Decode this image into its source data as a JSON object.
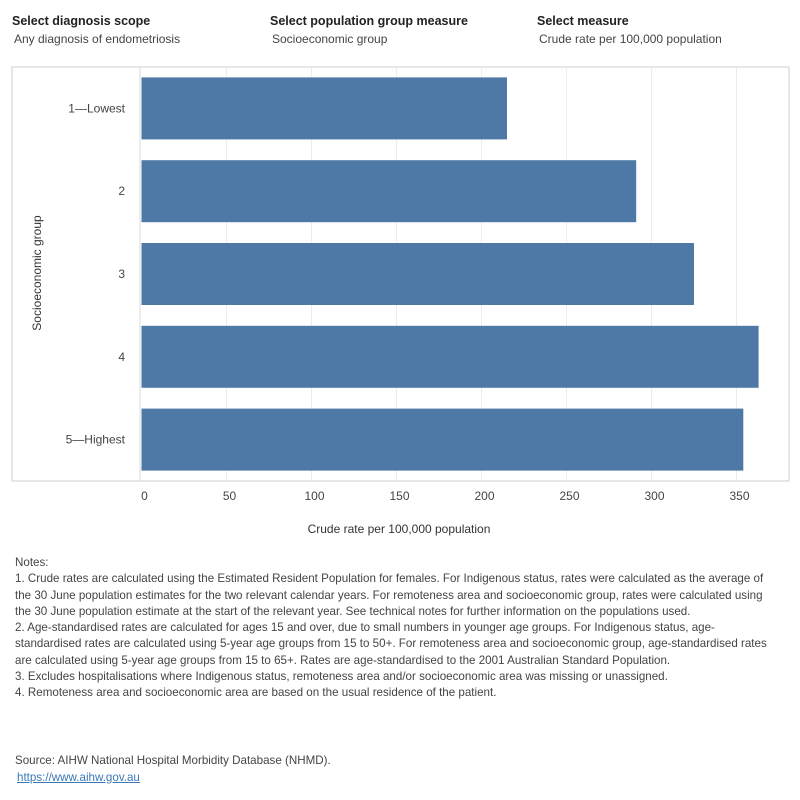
{
  "filters": [
    {
      "label": "Select diagnosis scope",
      "value": "Any diagnosis of endometriosis"
    },
    {
      "label": "Select population group measure",
      "value": "Socioeconomic group"
    },
    {
      "label": "Select measure",
      "value": "Crude rate per 100,000 population"
    }
  ],
  "chart_data": {
    "type": "bar",
    "orientation": "horizontal",
    "categories": [
      "1—Lowest",
      "2",
      "3",
      "4",
      "5—Highest"
    ],
    "values": [
      215,
      291,
      325,
      363,
      354
    ],
    "xlabel": "Crude rate per 100,000 population",
    "ylabel": "Socioeconomic group",
    "xticks": [
      "0",
      "50",
      "100",
      "150",
      "200",
      "250",
      "300",
      "350"
    ],
    "xlim": [
      0,
      385
    ],
    "grid": true,
    "bar_color": "#4e79a7"
  },
  "notes": {
    "heading": "Notes:",
    "items": [
      "1. Crude rates are calculated using the Estimated Resident Population for females. For Indigenous status, rates were calculated as the average of the 30 June population estimates for the two relevant calendar years. For remoteness area and socioeconomic group, rates were calculated using the 30 June population estimate at the start of the relevant year. See technical notes for further information on the populations used.",
      "2. Age-standardised rates are calculated for ages 15 and over, due to small numbers in younger age groups. For Indigenous status, age-standardised rates are calculated using 5-year age groups from 15 to 50+. For remoteness area and socioeconomic group, age-standardised rates are calculated using 5-year age groups from 15 to 65+. Rates are age-standardised to the 2001 Australian Standard Population.",
      "3. Excludes hospitalisations where Indigenous status, remoteness area and/or socioeconomic area was missing or unassigned.",
      "4. Remoteness area and socioeconomic area are based on the usual residence of the patient."
    ]
  },
  "source": {
    "text": "Source: AIHW National Hospital Morbidity Database (NHMD).",
    "link": "https://www.aihw.gov.au"
  }
}
